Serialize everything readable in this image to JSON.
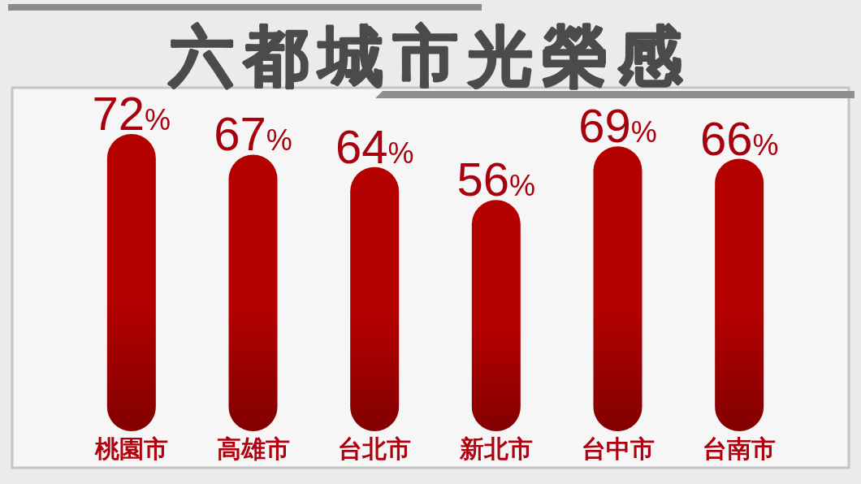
{
  "chart_data": {
    "type": "bar",
    "title": "六都城市光榮感",
    "categories": [
      "桃園市",
      "高雄市",
      "台北市",
      "新北市",
      "台中市",
      "台南市"
    ],
    "values": [
      72,
      67,
      64,
      56,
      69,
      66
    ],
    "value_labels": [
      "72%",
      "67%",
      "64%",
      "56%",
      "69%",
      "66%"
    ],
    "color": "#b50000"
  }
}
